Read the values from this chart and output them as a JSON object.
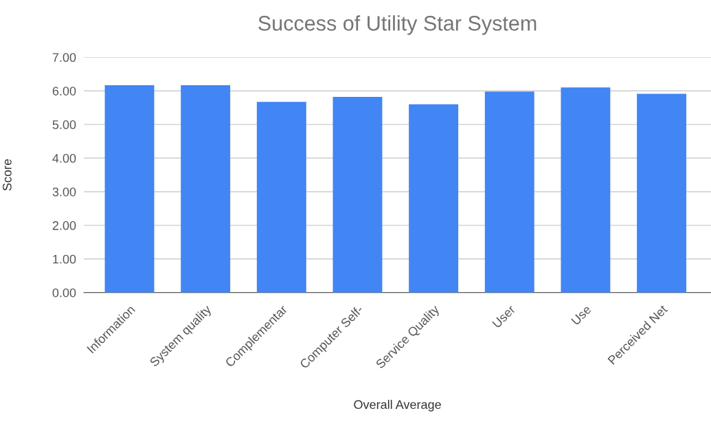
{
  "chart_data": {
    "type": "bar",
    "title": "Success of Utility Star System",
    "xlabel": "Overall Average",
    "ylabel": "Score",
    "categories": [
      "Information",
      "System quality",
      "Complementar",
      "Computer Self-",
      "Service Quality",
      "User",
      "Use",
      "Perceived Net"
    ],
    "values": [
      6.17,
      6.17,
      5.67,
      5.82,
      5.6,
      5.98,
      6.1,
      5.91
    ],
    "color": "#4285f4",
    "ylim": [
      0,
      7
    ],
    "yticks": [
      {
        "value": 0,
        "label": "0.00"
      },
      {
        "value": 1,
        "label": "1.00"
      },
      {
        "value": 2,
        "label": "2.00"
      },
      {
        "value": 3,
        "label": "3.00"
      },
      {
        "value": 4,
        "label": "4.00"
      },
      {
        "value": 5,
        "label": "5.00"
      },
      {
        "value": 6,
        "label": "6.00"
      },
      {
        "value": 7,
        "label": "7.00"
      }
    ],
    "grid": "y"
  }
}
